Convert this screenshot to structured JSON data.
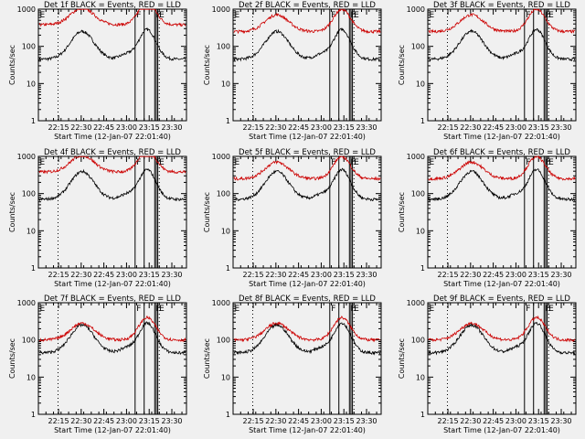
{
  "chart_data": [
    {
      "title": "Det 1f BLACK = Events, RED = LLD",
      "events_level": "low",
      "lld_level": "high"
    },
    {
      "title": "Det 2f BLACK = Events, RED = LLD",
      "events_level": "low",
      "lld_level": "mid"
    },
    {
      "title": "Det 3f BLACK = Events, RED = LLD",
      "events_level": "low",
      "lld_level": "mid"
    },
    {
      "title": "Det 4f BLACK = Events, RED = LLD",
      "events_level": "mid",
      "lld_level": "high"
    },
    {
      "title": "Det 5f BLACK = Events, RED = LLD",
      "events_level": "mid",
      "lld_level": "mid"
    },
    {
      "title": "Det 6f BLACK = Events, RED = LLD",
      "events_level": "mid",
      "lld_level": "mid"
    },
    {
      "title": "Det 7f BLACK = Events, RED = LLD",
      "events_level": "low",
      "lld_level": "low"
    },
    {
      "title": "Det 8f BLACK = Events, RED = LLD",
      "events_level": "low",
      "lld_level": "low"
    },
    {
      "title": "Det 9f BLACK = Events, RED = LLD",
      "events_level": "low",
      "lld_level": "low"
    }
  ],
  "shared": {
    "type": "line",
    "xlabel": "Start Time (12-Jan-07 22:01:40)",
    "ylabel": "Counts/sec",
    "x_tick_labels": [
      "22:15",
      "22:30",
      "22:45",
      "23:00",
      "23:15",
      "23:30"
    ],
    "x_tick_minutes": [
      13.33,
      28.33,
      43.33,
      58.33,
      73.33,
      88.33
    ],
    "x_range_minutes": [
      0,
      98
    ],
    "y_scale": "log",
    "y_range": [
      1,
      1000
    ],
    "y_tick_labels": [
      "1",
      "10",
      "100",
      "1000"
    ],
    "y_tick_values": [
      1,
      10,
      100,
      1000
    ],
    "series": [
      {
        "name": "Events",
        "color": "#000000"
      },
      {
        "name": "LLD",
        "color": "#cc0000"
      }
    ],
    "markers": [
      {
        "label": "E",
        "x_minutes": 0
      },
      {
        "label": "F",
        "x_minutes": 64
      },
      {
        "label": "F",
        "x_minutes": 77
      },
      {
        "label": "E",
        "x_minutes": 79
      }
    ],
    "extra_line_x_minutes": [
      70,
      78
    ],
    "dotted_line_x_minutes": [
      13,
      80
    ]
  }
}
